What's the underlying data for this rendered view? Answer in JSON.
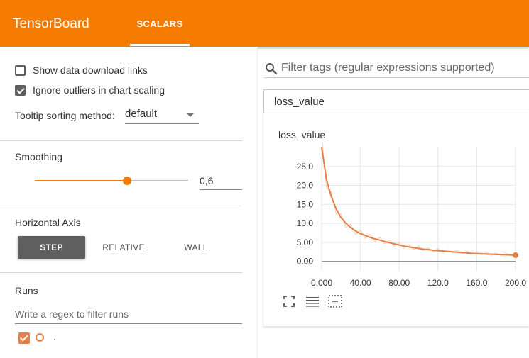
{
  "app": {
    "title": "TensorBoard",
    "active_tab": "SCALARS"
  },
  "colors": {
    "accent": "#f57c00",
    "run": "#e5804a",
    "button_active": "#5f5f5f"
  },
  "sidebar": {
    "show_download_label": "Show data download links",
    "show_download_checked": false,
    "ignore_outliers_label": "Ignore outliers in chart scaling",
    "ignore_outliers_checked": true,
    "tooltip_label": "Tooltip sorting method:",
    "tooltip_value": "default",
    "smoothing_label": "Smoothing",
    "smoothing_value": "0,6",
    "smoothing_fraction": 0.6,
    "horizontal_axis_label": "Horizontal Axis",
    "axis_buttons": [
      "STEP",
      "RELATIVE",
      "WALL"
    ],
    "axis_selected": "STEP",
    "runs_label": "Runs",
    "runs_placeholder": "Write a regex to filter runs",
    "run_name": "."
  },
  "main": {
    "filter_placeholder": "Filter tags (regular expressions supported)",
    "group_name": "loss_value",
    "card_title": "loss_value",
    "icons": [
      "fullscreen-icon",
      "log-scale-icon",
      "fit-domain-icon"
    ]
  },
  "chart_data": {
    "type": "line",
    "title": "loss_value",
    "xlim": [
      0,
      200
    ],
    "ylim": [
      -2.5,
      30
    ],
    "x_ticks": [
      "0.000",
      "40.00",
      "80.00",
      "120.0",
      "160.0",
      "200.0"
    ],
    "y_ticks": [
      "0.00",
      "5.00",
      "10.0",
      "15.0",
      "20.0",
      "25.0"
    ],
    "grid": true,
    "series": [
      {
        "x": [
          0,
          5,
          10,
          15,
          20,
          25,
          30,
          35,
          40,
          45,
          50,
          55,
          60,
          65,
          70,
          75,
          80,
          85,
          90,
          95,
          100,
          105,
          110,
          115,
          120,
          125,
          130,
          135,
          140,
          145,
          150,
          155,
          160,
          165,
          170,
          175,
          180,
          185,
          190,
          195,
          200
        ],
        "y": [
          30.0,
          21.5,
          17.0,
          13.8,
          11.5,
          10.0,
          8.9,
          8.0,
          7.3,
          6.8,
          6.3,
          5.9,
          5.6,
          5.2,
          4.9,
          4.6,
          4.3,
          4.0,
          3.8,
          3.6,
          3.4,
          3.2,
          3.1,
          2.9,
          2.8,
          2.7,
          2.6,
          2.5,
          2.4,
          2.3,
          2.2,
          2.1,
          2.0,
          2.0,
          1.9,
          1.9,
          1.8,
          1.8,
          1.7,
          1.7,
          1.6
        ],
        "raw_y": [
          33.0,
          19.5,
          18.2,
          12.4,
          12.6,
          8.9,
          9.8,
          7.1,
          8.2,
          6.0,
          7.1,
          5.2,
          6.4,
          4.6,
          5.6,
          4.0,
          5.0,
          3.5,
          4.4,
          3.1,
          4.0,
          2.8,
          3.6,
          2.5,
          3.3,
          2.3,
          3.1,
          2.2,
          2.9,
          2.0,
          2.7,
          1.8,
          2.5,
          1.7,
          2.3,
          1.6,
          2.2,
          1.5,
          2.1,
          1.5,
          1.6
        ]
      }
    ]
  }
}
